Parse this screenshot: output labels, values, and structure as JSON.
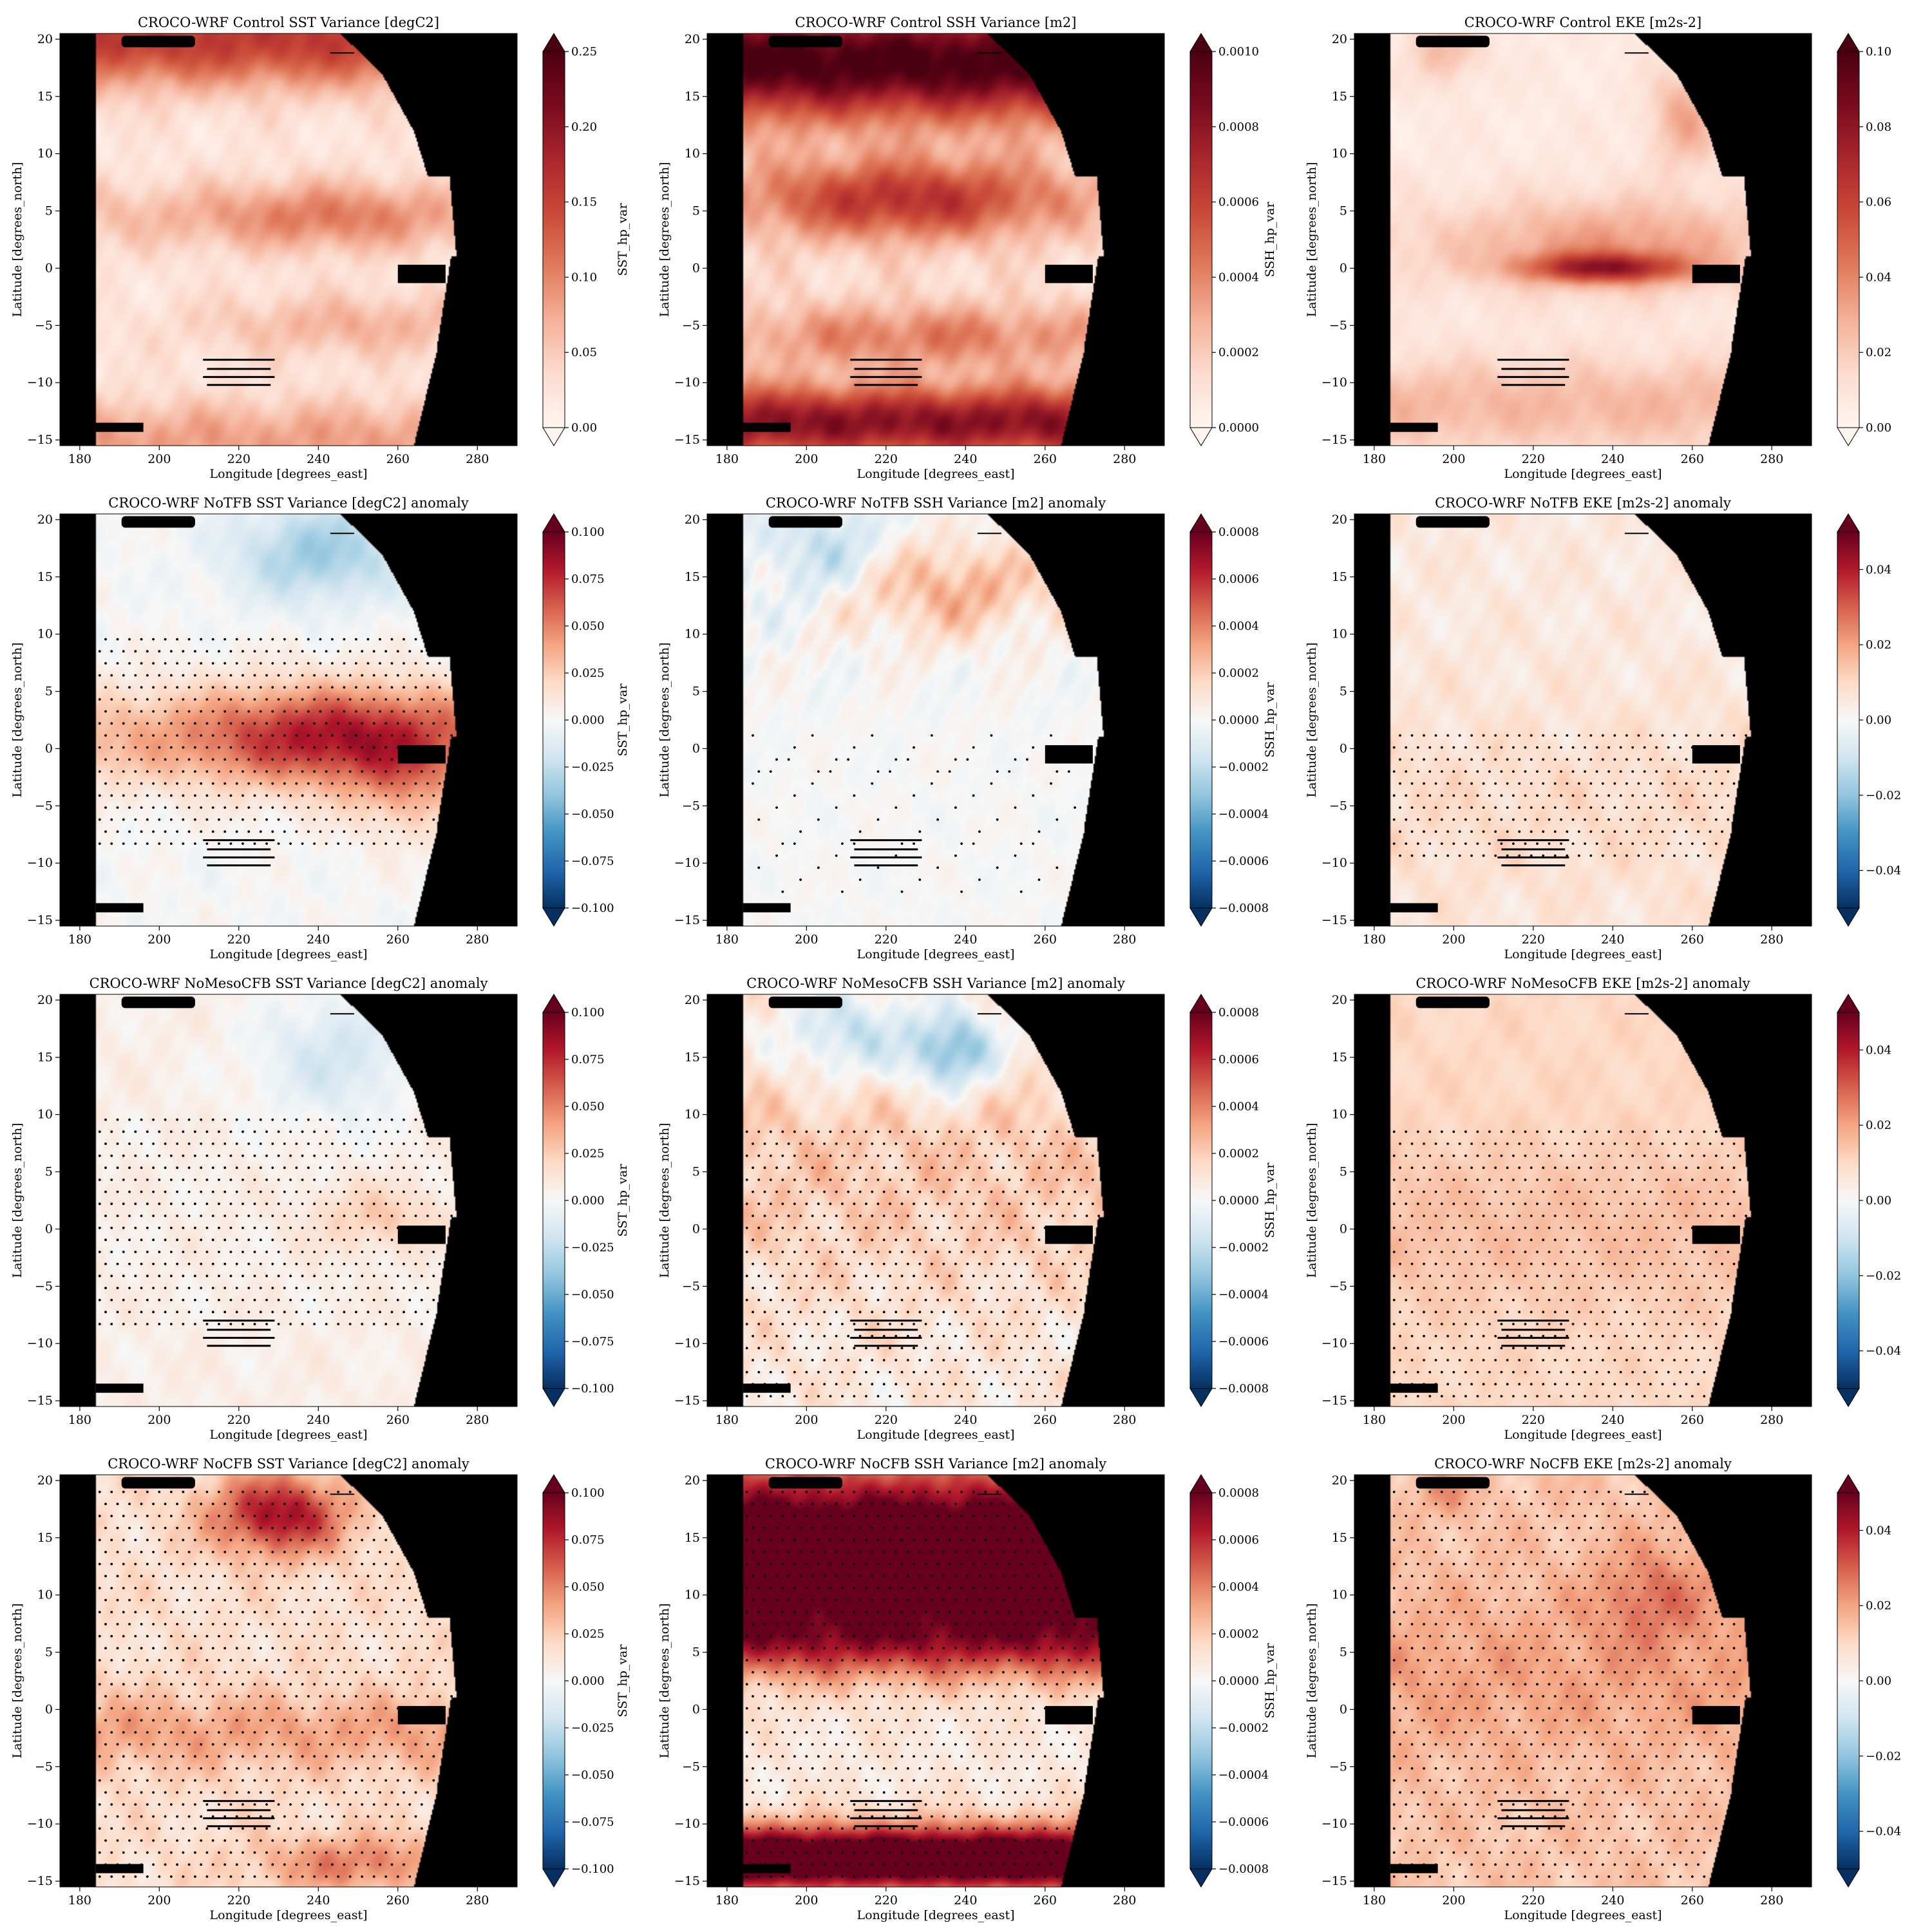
{
  "figure": {
    "xlabel": "Longitude [degrees_east]",
    "ylabel": "Latitude [degrees_north]",
    "xticks": [
      180,
      200,
      220,
      240,
      260,
      280
    ],
    "yticks": [
      20,
      15,
      10,
      5,
      0,
      -5,
      -10,
      -15
    ],
    "xlim": [
      175,
      290
    ],
    "ylim": [
      -15.5,
      20.5
    ],
    "land_color": "#000000",
    "colormap": "RdBu_r",
    "colorbar_extend": "both"
  },
  "chart_data": [
    {
      "type": "heatmap",
      "title": "CROCO-WRF Control SST Variance [degC2]",
      "cbar_label": "SST_hp_var",
      "vmin": 0,
      "vmax": 0.25,
      "cbar_ticks": [
        "0.00",
        "0.05",
        "0.10",
        "0.15",
        "0.20",
        "0.25"
      ],
      "pattern": "sst",
      "stipple": "none",
      "mode": "field"
    },
    {
      "type": "heatmap",
      "title": "CROCO-WRF Control SSH Variance [m2]",
      "cbar_label": "SSH_hp_var",
      "vmin": 0,
      "vmax": 0.001,
      "cbar_ticks": [
        "0.0000",
        "0.0002",
        "0.0004",
        "0.0006",
        "0.0008",
        "0.0010"
      ],
      "pattern": "ssh",
      "stipple": "none",
      "mode": "field"
    },
    {
      "type": "heatmap",
      "title": "CROCO-WRF Control EKE [m2s-2]",
      "cbar_label": "",
      "vmin": 0,
      "vmax": 0.1,
      "cbar_ticks": [
        "0.00",
        "0.02",
        "0.04",
        "0.06",
        "0.08",
        "0.10"
      ],
      "pattern": "eke",
      "stipple": "none",
      "mode": "field"
    },
    {
      "type": "heatmap",
      "title": "CROCO-WRF NoTFB SST Variance [degC2] anomaly",
      "cbar_label": "SST_hp_var",
      "vmin": -0.1,
      "vmax": 0.1,
      "cbar_ticks": [
        "-0.100",
        "-0.075",
        "-0.050",
        "-0.025",
        "0.000",
        "0.025",
        "0.050",
        "0.075",
        "0.100"
      ],
      "pattern": "notfb_sst",
      "stipple": "tropics",
      "mode": "anomaly"
    },
    {
      "type": "heatmap",
      "title": "CROCO-WRF NoTFB SSH Variance [m2] anomaly",
      "cbar_label": "SSH_hp_var",
      "vmin": -0.0008,
      "vmax": 0.0008,
      "cbar_ticks": [
        "-0.0008",
        "-0.0006",
        "-0.0004",
        "-0.0002",
        "0.0000",
        "0.0002",
        "0.0004",
        "0.0006",
        "0.0008"
      ],
      "pattern": "notfb_ssh",
      "stipple": "sparse",
      "mode": "anomaly"
    },
    {
      "type": "heatmap",
      "title": "CROCO-WRF NoTFB EKE [m2s-2] anomaly",
      "cbar_label": "",
      "vmin": -0.05,
      "vmax": 0.05,
      "cbar_ticks": [
        "-0.04",
        "-0.02",
        "0.00",
        "0.02",
        "0.04"
      ],
      "pattern": "notfb_eke",
      "stipple": "south",
      "mode": "anomaly"
    },
    {
      "type": "heatmap",
      "title": "CROCO-WRF NoMesoCFB SST Variance [degC2] anomaly",
      "cbar_label": "SST_hp_var",
      "vmin": -0.1,
      "vmax": 0.1,
      "cbar_ticks": [
        "-0.100",
        "-0.075",
        "-0.050",
        "-0.025",
        "0.000",
        "0.025",
        "0.050",
        "0.075",
        "0.100"
      ],
      "pattern": "nomeso_sst",
      "stipple": "tropics",
      "mode": "anomaly"
    },
    {
      "type": "heatmap",
      "title": "CROCO-WRF NoMesoCFB SSH Variance [m2] anomaly",
      "cbar_label": "SSH_hp_var",
      "vmin": -0.0008,
      "vmax": 0.0008,
      "cbar_ticks": [
        "-0.0008",
        "-0.0006",
        "-0.0004",
        "-0.0002",
        "0.0000",
        "0.0002",
        "0.0004",
        "0.0006",
        "0.0008"
      ],
      "pattern": "nomeso_ssh",
      "stipple": "wide",
      "mode": "anomaly"
    },
    {
      "type": "heatmap",
      "title": "CROCO-WRF NoMesoCFB EKE [m2s-2] anomaly",
      "cbar_label": "",
      "vmin": -0.05,
      "vmax": 0.05,
      "cbar_ticks": [
        "-0.04",
        "-0.02",
        "0.00",
        "0.02",
        "0.04"
      ],
      "pattern": "nomeso_eke",
      "stipple": "wide",
      "mode": "anomaly"
    },
    {
      "type": "heatmap",
      "title": "CROCO-WRF NoCFB SST Variance [degC2] anomaly",
      "cbar_label": "SST_hp_var",
      "vmin": -0.1,
      "vmax": 0.1,
      "cbar_ticks": [
        "-0.100",
        "-0.075",
        "-0.050",
        "-0.025",
        "0.000",
        "0.025",
        "0.050",
        "0.075",
        "0.100"
      ],
      "pattern": "nocfb_sst",
      "stipple": "full",
      "mode": "anomaly"
    },
    {
      "type": "heatmap",
      "title": "CROCO-WRF NoCFB SSH Variance [m2] anomaly",
      "cbar_label": "SSH_hp_var",
      "vmin": -0.0008,
      "vmax": 0.0008,
      "cbar_ticks": [
        "-0.0008",
        "-0.0006",
        "-0.0004",
        "-0.0002",
        "0.0000",
        "0.0002",
        "0.0004",
        "0.0006",
        "0.0008"
      ],
      "pattern": "nocfb_ssh",
      "stipple": "full",
      "mode": "anomaly"
    },
    {
      "type": "heatmap",
      "title": "CROCO-WRF NoCFB EKE [m2s-2] anomaly",
      "cbar_label": "",
      "vmin": -0.05,
      "vmax": 0.05,
      "cbar_ticks": [
        "-0.04",
        "-0.02",
        "0.00",
        "0.02",
        "0.04"
      ],
      "pattern": "nocfb_eke",
      "stipple": "full",
      "mode": "anomaly"
    }
  ]
}
